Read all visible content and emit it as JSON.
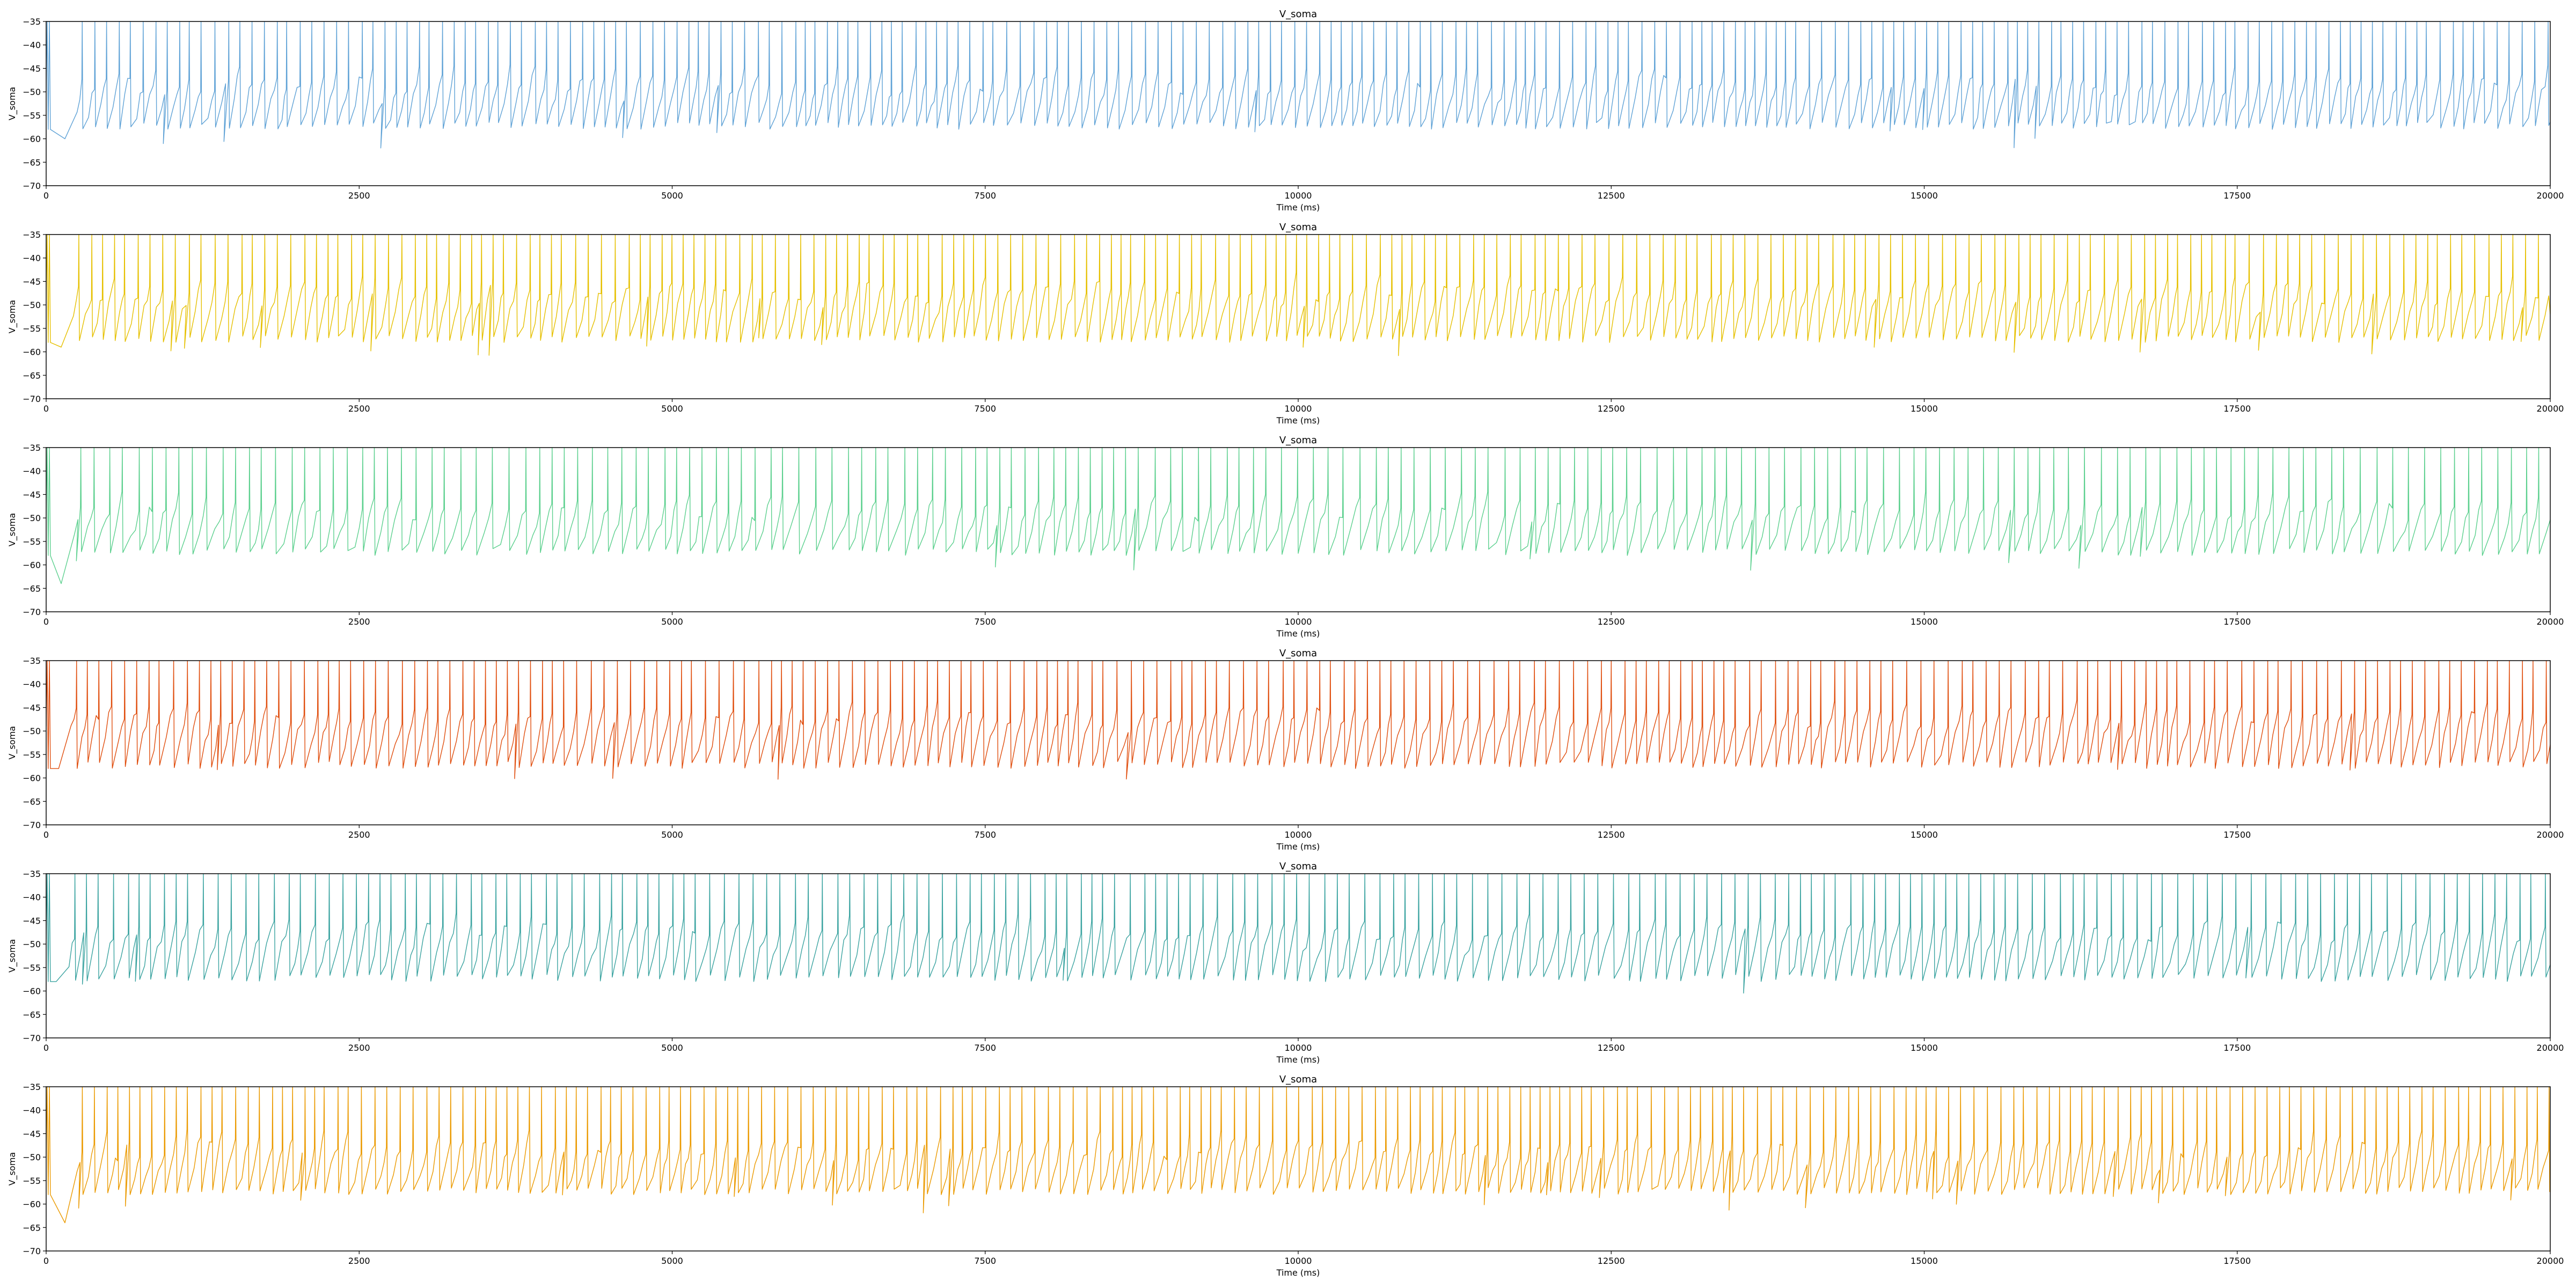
{
  "chart_data": [
    {
      "type": "line",
      "title": "V_soma",
      "xlabel": "Time (ms)",
      "ylabel": "V_soma",
      "xlim": [
        0,
        20000
      ],
      "ylim": [
        -70,
        -35
      ],
      "xticks": [
        0,
        2500,
        5000,
        7500,
        10000,
        12500,
        15000,
        17500,
        20000
      ],
      "yticks": [
        -70,
        -65,
        -60,
        -55,
        -50,
        -45,
        -40,
        -35
      ],
      "grid": false,
      "color": "#5fa2d6",
      "series": [
        {
          "x_start": 0,
          "x_end": 20000,
          "spike_interval_ms": 90,
          "spike_peak": -35,
          "reset_min": -58,
          "resting_level": -53,
          "early_dip_time": 150,
          "early_dip_value": -60,
          "seed": 11
        }
      ]
    },
    {
      "type": "line",
      "title": "V_soma",
      "xlabel": "Time (ms)",
      "ylabel": "V_soma",
      "xlim": [
        0,
        20000
      ],
      "ylim": [
        -70,
        -35
      ],
      "xticks": [
        0,
        2500,
        5000,
        7500,
        10000,
        12500,
        15000,
        17500,
        20000
      ],
      "yticks": [
        -70,
        -65,
        -60,
        -55,
        -50,
        -45,
        -40,
        -35
      ],
      "grid": false,
      "color": "#e6c000",
      "series": [
        {
          "x_start": 0,
          "x_end": 20000,
          "spike_interval_ms": 93,
          "spike_peak": -35,
          "reset_min": -58,
          "resting_level": -52,
          "early_dip_time": 120,
          "early_dip_value": -59,
          "seed": 23
        }
      ]
    },
    {
      "type": "line",
      "title": "V_soma",
      "xlabel": "Time (ms)",
      "ylabel": "V_soma",
      "xlim": [
        0,
        20000
      ],
      "ylim": [
        -70,
        -35
      ],
      "xticks": [
        0,
        2500,
        5000,
        7500,
        10000,
        12500,
        15000,
        17500,
        20000
      ],
      "yticks": [
        -70,
        -65,
        -60,
        -55,
        -50,
        -45,
        -40,
        -35
      ],
      "grid": false,
      "color": "#5cd08e",
      "series": [
        {
          "x_start": 0,
          "x_end": 20000,
          "spike_interval_ms": 112,
          "spike_peak": -35,
          "reset_min": -58,
          "resting_level": -53,
          "early_dip_time": 120,
          "early_dip_value": -64,
          "seed": 37
        }
      ]
    },
    {
      "type": "line",
      "title": "V_soma",
      "xlabel": "Time (ms)",
      "ylabel": "V_soma",
      "xlim": [
        0,
        20000
      ],
      "ylim": [
        -70,
        -35
      ],
      "xticks": [
        0,
        2500,
        5000,
        7500,
        10000,
        12500,
        15000,
        17500,
        20000
      ],
      "yticks": [
        -70,
        -65,
        -60,
        -55,
        -50,
        -45,
        -40,
        -35
      ],
      "grid": false,
      "color": "#e04e0e",
      "series": [
        {
          "x_start": 0,
          "x_end": 20000,
          "spike_interval_ms": 95,
          "spike_peak": -35,
          "reset_min": -58,
          "resting_level": -52,
          "early_dip_time": 100,
          "early_dip_value": -58,
          "seed": 41
        }
      ]
    },
    {
      "type": "line",
      "title": "V_soma",
      "xlabel": "Time (ms)",
      "ylabel": "V_soma",
      "xlim": [
        0,
        20000
      ],
      "ylim": [
        -70,
        -35
      ],
      "xticks": [
        0,
        2500,
        5000,
        7500,
        10000,
        12500,
        15000,
        17500,
        20000
      ],
      "yticks": [
        -70,
        -65,
        -60,
        -55,
        -50,
        -45,
        -40,
        -35
      ],
      "grid": false,
      "color": "#3aa3a0",
      "series": [
        {
          "x_start": 0,
          "x_end": 20000,
          "spike_interval_ms": 103,
          "spike_peak": -35,
          "reset_min": -58,
          "resting_level": -52,
          "early_dip_time": 80,
          "early_dip_value": -58,
          "seed": 53
        }
      ]
    },
    {
      "type": "line",
      "title": "V_soma",
      "xlabel": "Time (ms)",
      "ylabel": "V_soma",
      "xlim": [
        0,
        20000
      ],
      "ylim": [
        -70,
        -35
      ],
      "xticks": [
        0,
        2500,
        5000,
        7500,
        10000,
        12500,
        15000,
        17500,
        20000
      ],
      "yticks": [
        -70,
        -65,
        -60,
        -55,
        -50,
        -45,
        -40,
        -35
      ],
      "grid": false,
      "color": "#eb9a00",
      "series": [
        {
          "x_start": 0,
          "x_end": 20000,
          "spike_interval_ms": 90,
          "spike_peak": -35,
          "reset_min": -58,
          "resting_level": -53,
          "early_dip_time": 150,
          "early_dip_value": -64,
          "seed": 67
        }
      ]
    }
  ]
}
